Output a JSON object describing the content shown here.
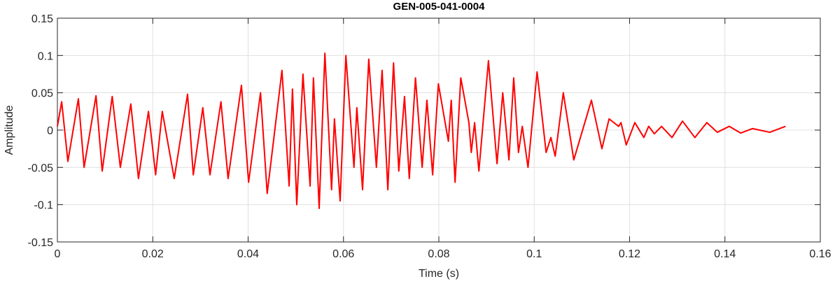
{
  "chart_data": {
    "type": "line",
    "title": "GEN-005-041-0004",
    "xlabel": "Time (s)",
    "ylabel": "Amplitude",
    "x": [
      0,
      0.0009,
      0.0022,
      0.0044,
      0.0056,
      0.0081,
      0.0094,
      0.0115,
      0.0132,
      0.0154,
      0.017,
      0.0191,
      0.0206,
      0.022,
      0.0245,
      0.0273,
      0.0285,
      0.0305,
      0.032,
      0.0343,
      0.0358,
      0.0386,
      0.0401,
      0.0426,
      0.044,
      0.0471,
      0.0486,
      0.0493,
      0.0502,
      0.0515,
      0.053,
      0.0537,
      0.0549,
      0.0561,
      0.0575,
      0.0581,
      0.0593,
      0.0605,
      0.0622,
      0.0628,
      0.064,
      0.0653,
      0.0669,
      0.0681,
      0.0693,
      0.0705,
      0.0716,
      0.0728,
      0.0738,
      0.0751,
      0.0765,
      0.0775,
      0.0787,
      0.0799,
      0.082,
      0.0826,
      0.0834,
      0.0846,
      0.0863,
      0.0868,
      0.0875,
      0.0884,
      0.0904,
      0.0922,
      0.0934,
      0.0947,
      0.0957,
      0.0967,
      0.0975,
      0.0987,
      0.1006,
      0.1025,
      0.1035,
      0.1044,
      0.1061,
      0.1083,
      0.112,
      0.1142,
      0.1157,
      0.1177,
      0.1182,
      0.1193,
      0.1211,
      0.123,
      0.124,
      0.1252,
      0.1267,
      0.1289,
      0.1311,
      0.1337,
      0.1362,
      0.1384,
      0.1409,
      0.1433,
      0.1458,
      0.1494,
      0.1527
    ],
    "series": [
      {
        "name": "Amplitude",
        "color": "#ff0000",
        "values": [
          0.005,
          0.038,
          -0.042,
          0.042,
          -0.05,
          0.046,
          -0.055,
          0.045,
          -0.05,
          0.035,
          -0.065,
          0.025,
          -0.06,
          0.025,
          -0.065,
          0.048,
          -0.06,
          0.03,
          -0.06,
          0.038,
          -0.065,
          0.06,
          -0.07,
          0.05,
          -0.085,
          0.08,
          -0.075,
          0.055,
          -0.1,
          0.075,
          -0.075,
          0.07,
          -0.105,
          0.103,
          -0.08,
          0.015,
          -0.095,
          0.1,
          -0.05,
          0.03,
          -0.08,
          0.095,
          -0.05,
          0.08,
          -0.08,
          0.09,
          -0.055,
          0.045,
          -0.065,
          0.07,
          -0.05,
          0.04,
          -0.06,
          0.062,
          -0.015,
          0.04,
          -0.07,
          0.07,
          0.01,
          -0.03,
          0.01,
          -0.055,
          0.093,
          -0.045,
          0.05,
          -0.04,
          0.07,
          -0.03,
          0.005,
          -0.05,
          0.078,
          -0.03,
          -0.01,
          -0.035,
          0.05,
          -0.04,
          0.04,
          -0.025,
          0.015,
          0.005,
          0.01,
          -0.02,
          0.01,
          -0.01,
          0.005,
          -0.005,
          0.005,
          -0.01,
          0.012,
          -0.01,
          0.01,
          -0.003,
          0.005,
          -0.004,
          0.002,
          -0.003,
          0.005
        ]
      }
    ],
    "xlim": [
      0,
      0.16
    ],
    "xticks": [
      0,
      0.02,
      0.04,
      0.06,
      0.08,
      0.1,
      0.12,
      0.14,
      0.16
    ],
    "ylim": [
      -0.15,
      0.15
    ],
    "yticks": [
      -0.15,
      -0.1,
      -0.05,
      0,
      0.05,
      0.1,
      0.15
    ],
    "grid": true
  }
}
